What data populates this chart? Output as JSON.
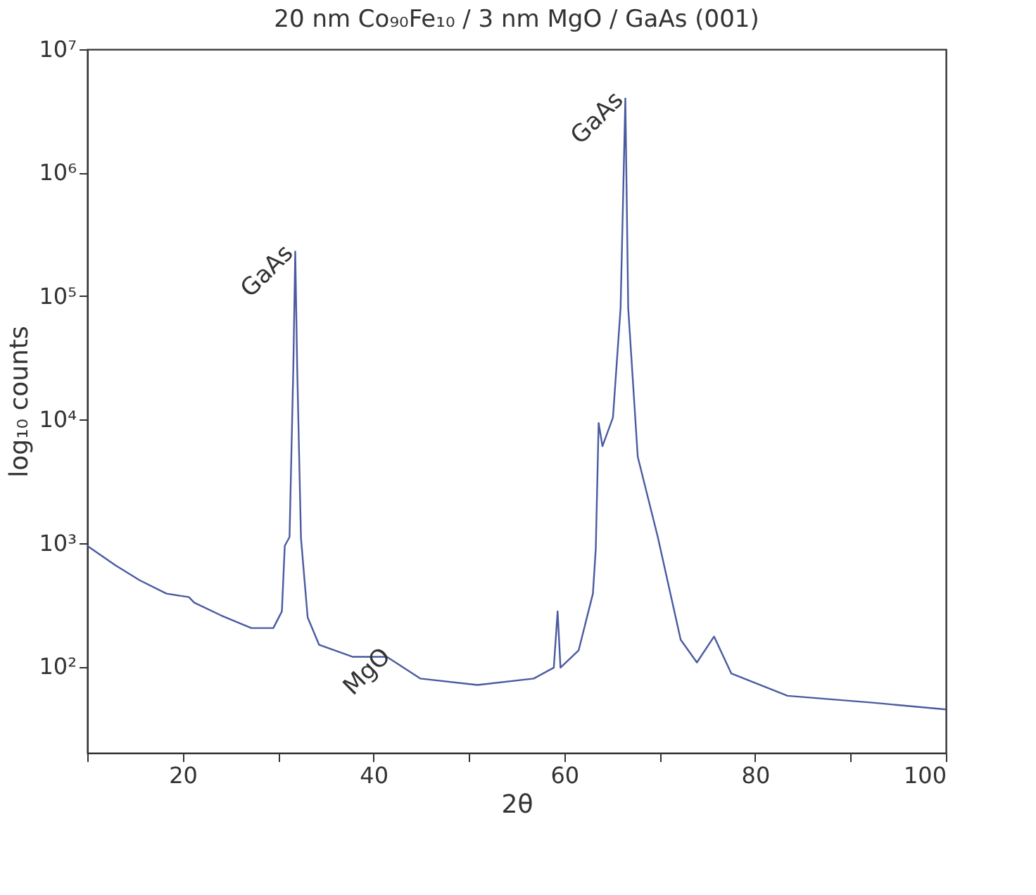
{
  "chart_data": {
    "type": "line",
    "title": "20 nm Co₉₀Fe₁₀ / 3 nm MgO / GaAs (001)",
    "xlabel": "2θ",
    "ylabel": "log₁₀ counts",
    "x": [
      10,
      12.96,
      15.5,
      18.3,
      20.66,
      21.2,
      24,
      27.2,
      29.5,
      30.4,
      30.7,
      31.2,
      31.6,
      31.8,
      32.0,
      32.4,
      33.1,
      34.3,
      37.8,
      41.4,
      44.9,
      50.9,
      56.8,
      58.9,
      59.3,
      59.6,
      61.5,
      63.0,
      63.3,
      63.6,
      64.0,
      65.1,
      65.9,
      66.4,
      66.7,
      67.7,
      69.8,
      72.2,
      73.9,
      75.7,
      77.5,
      83.4,
      92.3,
      100
    ],
    "series": [
      {
        "color": "#4a5aa0",
        "values": [
          950,
          660,
          500,
          390,
          365,
          330,
          260,
          205,
          205,
          280,
          950,
          1120,
          27000,
          230000,
          27000,
          1100,
          250,
          150,
          120,
          120,
          80,
          71,
          80,
          98,
          280,
          98,
          135,
          390,
          900,
          9400,
          6100,
          10400,
          80000,
          4000000,
          80000,
          5000,
          1120,
          165,
          108,
          175,
          88,
          58,
          51,
          45
        ]
      }
    ],
    "log": true,
    "grid": false,
    "legend": false,
    "marker": "none",
    "line_style": "solid",
    "xlim": [
      10,
      100
    ],
    "ylim": [
      20,
      10000000
    ],
    "xticks": [
      {
        "value": 10,
        "label": null
      },
      20,
      {
        "value": 30,
        "label": null
      },
      40,
      {
        "value": 50,
        "label": null
      },
      60,
      {
        "value": 70,
        "label": null
      },
      80,
      {
        "value": 90,
        "label": null
      },
      100
    ],
    "yticks": [
      {
        "value": 100,
        "label": "10²"
      },
      {
        "value": 1000,
        "label": "10³"
      },
      {
        "value": 10000,
        "label": "10⁴"
      },
      {
        "value": 100000,
        "label": "10⁵"
      },
      {
        "value": 1000000,
        "label": "10⁶"
      },
      {
        "value": 10000000,
        "label": "10⁷"
      }
    ],
    "annotations": [
      {
        "text": "GaAs",
        "x": 31.8,
        "y": 230000
      },
      {
        "text": "MgO",
        "x": 42,
        "y": 125
      },
      {
        "text": "GaAs",
        "x": 66.4,
        "y": 4000000
      }
    ]
  }
}
